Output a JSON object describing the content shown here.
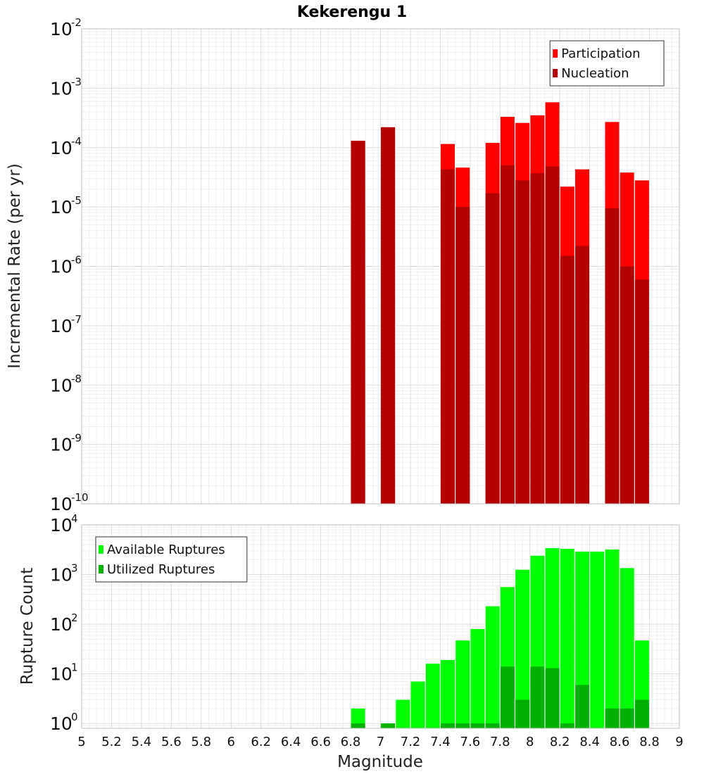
{
  "chart_data": [
    {
      "type": "bar",
      "title": "Kekerengu 1",
      "xlabel": "",
      "ylabel": "Incremental Rate (per yr)",
      "yscale": "log",
      "xlim": [
        5,
        9
      ],
      "ylim": [
        1e-10,
        0.01
      ],
      "y_tick_exponents": [
        -10,
        -9,
        -8,
        -7,
        -6,
        -5,
        -4,
        -3,
        -2
      ],
      "grid": true,
      "legend_position": "top-right",
      "x": [
        6.85,
        7.05,
        7.45,
        7.55,
        7.75,
        7.85,
        7.95,
        8.05,
        8.15,
        8.25,
        8.35,
        8.55,
        8.65,
        8.75
      ],
      "series": [
        {
          "name": "Participation",
          "color": "#ff0000",
          "values": [
            0.00013,
            0.00022,
            0.000115,
            4.6e-05,
            0.00012,
            0.00033,
            0.00026,
            0.00035,
            0.00058,
            2.2e-05,
            4.3e-05,
            0.00027,
            3.8e-05,
            2.8e-05
          ]
        },
        {
          "name": "Nucleation",
          "color": "#b30000",
          "values": [
            0.00013,
            0.00022,
            4.3e-05,
            1e-05,
            1.7e-05,
            5e-05,
            2.8e-05,
            3.7e-05,
            4.8e-05,
            1.5e-06,
            2.2e-06,
            9.5e-06,
            1e-06,
            6e-07
          ]
        }
      ]
    },
    {
      "type": "bar",
      "title": "",
      "xlabel": "Magnitude",
      "ylabel": "Rupture Count",
      "yscale": "log",
      "xlim": [
        5,
        9
      ],
      "ylim": [
        0.8,
        10000.0
      ],
      "y_tick_exponents": [
        0,
        1,
        2,
        3,
        4
      ],
      "x_ticks": [
        "5",
        "5.2",
        "5.4",
        "5.6",
        "5.8",
        "6",
        "6.2",
        "6.4",
        "6.6",
        "6.8",
        "7",
        "7.2",
        "7.4",
        "7.6",
        "7.8",
        "8",
        "8.2",
        "8.4",
        "8.6",
        "8.8",
        "9"
      ],
      "grid": true,
      "legend_position": "top-left",
      "x": [
        6.85,
        7.05,
        7.15,
        7.25,
        7.35,
        7.45,
        7.55,
        7.65,
        7.75,
        7.85,
        7.95,
        8.05,
        8.15,
        8.25,
        8.35,
        8.45,
        8.55,
        8.65,
        8.75
      ],
      "series": [
        {
          "name": "Available Ruptures",
          "color": "#00ff00",
          "values": [
            2,
            1,
            3,
            7,
            16,
            19,
            47,
            80,
            230,
            560,
            1250,
            2400,
            3400,
            3300,
            2900,
            2900,
            3200,
            1350,
            47
          ]
        },
        {
          "name": "Utilized Ruptures",
          "color": "#00b000",
          "values": [
            1,
            1,
            0,
            0,
            0,
            1,
            1,
            1,
            1,
            14,
            3,
            14,
            13,
            1,
            6,
            0,
            2,
            2,
            3
          ]
        }
      ]
    }
  ]
}
